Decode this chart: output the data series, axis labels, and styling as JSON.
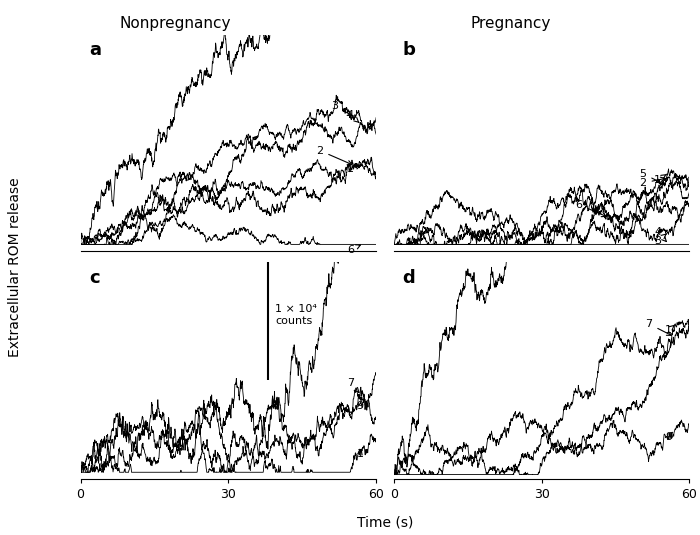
{
  "title_left": "Nonpregnancy",
  "title_right": "Pregnancy",
  "ylabel": "Extracellular ROM release",
  "xlabel": "Time (s)",
  "xlim": [
    0,
    60
  ],
  "panel_labels": [
    "a",
    "b",
    "c",
    "d"
  ],
  "scale_bar_text": "1 × 10⁴\ncounts",
  "background_color": "#ffffff",
  "line_color": "#000000"
}
